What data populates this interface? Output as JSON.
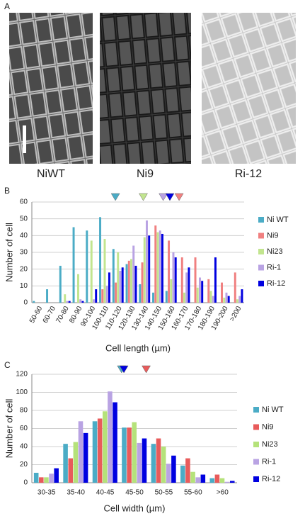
{
  "panel_a": {
    "label": "A",
    "images": [
      "NiWT",
      "Ni9",
      "Ri-12"
    ]
  },
  "chart_data": [
    {
      "type": "bar",
      "panel": "B",
      "ylabel": "Number of cell",
      "xlabel": "Cell length (µm)",
      "categories": [
        "50-60",
        "60-70",
        "70-80",
        "80-90",
        "90-100",
        "100-110",
        "110-120",
        "120-130",
        "130-140",
        "140-150",
        "150-160",
        "160-170",
        "170-180",
        "180-190",
        "190-200",
        ">200"
      ],
      "ylim": [
        0,
        60
      ],
      "yticks": [
        0,
        10,
        20,
        30,
        40,
        50,
        60
      ],
      "grid": true,
      "legend": "right",
      "series": [
        {
          "name": "Ni WT",
          "color": "#4bacc6",
          "mean": 113,
          "values": [
            1,
            8,
            22,
            45,
            43,
            51,
            32,
            23,
            11,
            6,
            7,
            0,
            0,
            0,
            0,
            0
          ]
        },
        {
          "name": "Ni9",
          "color": "#f08080",
          "mean": 161,
          "values": [
            0,
            0,
            0,
            0,
            0,
            8,
            12,
            25,
            24,
            46,
            37,
            27,
            27,
            14,
            12,
            18
          ]
        },
        {
          "name": "Ni23",
          "color": "#c2e58f",
          "mean": 134,
          "values": [
            0,
            0,
            5,
            17,
            37,
            38,
            30,
            26,
            39,
            42,
            14,
            6,
            9,
            7,
            3,
            2
          ]
        },
        {
          "name": "Ri-1",
          "color": "#b9a3e3",
          "mean": 149,
          "values": [
            0,
            0,
            1,
            2,
            2,
            10,
            19,
            34,
            49,
            43,
            30,
            18,
            15,
            4,
            6,
            4
          ]
        },
        {
          "name": "Ri-12",
          "color": "#0000e0",
          "mean": 154,
          "values": [
            0,
            0,
            1,
            1,
            8,
            18,
            21,
            22,
            40,
            41,
            27,
            21,
            13,
            27,
            4,
            8
          ]
        }
      ]
    },
    {
      "type": "bar",
      "panel": "C",
      "ylabel": "Number of cell",
      "xlabel": "Cell width (µm)",
      "categories": [
        "30-35",
        "35-40",
        "40-45",
        "45-50",
        "50-55",
        "55-60",
        ">60"
      ],
      "ylim": [
        0,
        120
      ],
      "yticks": [
        0,
        20,
        40,
        60,
        80,
        100,
        120
      ],
      "grid": true,
      "legend": "right",
      "series": [
        {
          "name": "Ni WT",
          "color": "#4bacc6",
          "mean": 45.3,
          "values": [
            11,
            43,
            68,
            61,
            43,
            19,
            5
          ]
        },
        {
          "name": "Ni9",
          "color": "#e85b5b",
          "mean": 49.5,
          "values": [
            6,
            27,
            71,
            61,
            49,
            27,
            9
          ]
        },
        {
          "name": "Ni23",
          "color": "#b5e27a",
          "values": [
            6,
            45,
            79,
            67,
            40,
            12,
            5
          ]
        },
        {
          "name": "Ri-1",
          "color": "#b9a3e3",
          "values": [
            10,
            68,
            101,
            44,
            21,
            6,
            1
          ]
        },
        {
          "name": "Ri-12",
          "color": "#0000e0",
          "mean": 45.7,
          "values": [
            16,
            55,
            89,
            49,
            30,
            9,
            2
          ]
        }
      ]
    }
  ]
}
